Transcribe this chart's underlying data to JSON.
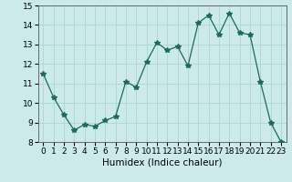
{
  "x": [
    0,
    1,
    2,
    3,
    4,
    5,
    6,
    7,
    8,
    9,
    10,
    11,
    12,
    13,
    14,
    15,
    16,
    17,
    18,
    19,
    20,
    21,
    22,
    23
  ],
  "y": [
    11.5,
    10.3,
    9.4,
    8.6,
    8.9,
    8.8,
    9.1,
    9.3,
    11.1,
    10.8,
    12.1,
    13.1,
    12.7,
    12.9,
    11.9,
    14.1,
    14.5,
    13.5,
    14.6,
    13.6,
    13.5,
    11.1,
    9.0,
    8.0
  ],
  "xlabel": "Humidex (Indice chaleur)",
  "ylim": [
    8,
    15
  ],
  "xlim_min": -0.5,
  "xlim_max": 23.5,
  "bg_color": "#cceaea",
  "line_color": "#1a6b5a",
  "grid_color": "#b0d8d8",
  "tick_label_size": 6.5,
  "xlabel_size": 7.5,
  "yticks": [
    8,
    9,
    10,
    11,
    12,
    13,
    14,
    15
  ]
}
